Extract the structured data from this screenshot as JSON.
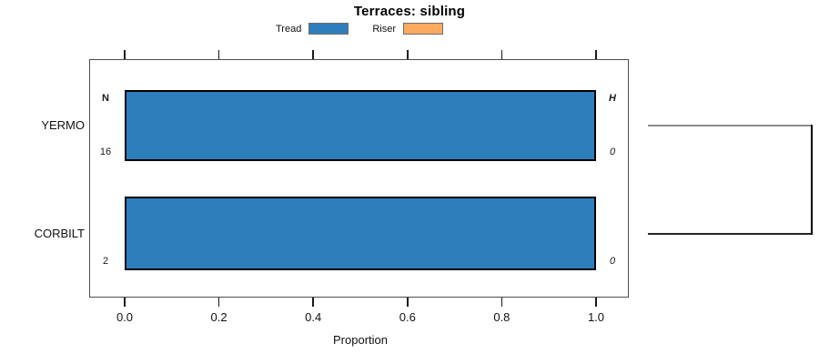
{
  "title": "Terraces: sibling",
  "legend": [
    {
      "label": "Tread",
      "color": "#2e7ebc"
    },
    {
      "label": "Riser",
      "color": "#fbaa5f"
    }
  ],
  "chart_data": {
    "type": "bar",
    "orientation": "horizontal",
    "title": "Terraces: sibling",
    "xlabel": "Proportion",
    "xlim": [
      0,
      1.08
    ],
    "xticks": [
      0.0,
      0.2,
      0.4,
      0.6,
      0.8,
      1.0
    ],
    "grid": false,
    "legend_position": "top-center",
    "categories": [
      "YERMO",
      "CORBILT"
    ],
    "series": [
      {
        "name": "Tread",
        "color": "#2e7ebc",
        "values": [
          1.0,
          1.0
        ]
      },
      {
        "name": "Riser",
        "color": "#fbaa5f",
        "values": [
          0.0,
          0.0
        ]
      }
    ],
    "n_column": {
      "header": "N",
      "values": [
        "16",
        "2"
      ]
    },
    "h_column": {
      "header": "H",
      "values": [
        "0",
        "0"
      ]
    }
  },
  "tree": {
    "tips": [
      "YERMO",
      "CORBILT"
    ],
    "branch_colors": [
      "#8c8c8c",
      "#262626"
    ],
    "join_color": "#000000"
  },
  "colors": {
    "bar_border": "#000000",
    "box_border": "#4d4d4d",
    "tick": "#1a1a1a"
  }
}
